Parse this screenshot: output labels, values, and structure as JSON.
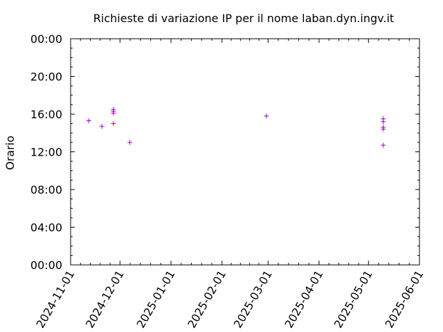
{
  "chart_data": {
    "type": "scatter",
    "title": "Richieste di variazione IP per il nome laban.dyn.ingv.it",
    "xlabel": "",
    "ylabel": "Orario",
    "x_type": "date",
    "xlim": [
      "2024-11-01",
      "2025-06-01"
    ],
    "x_ticks": [
      "2024-11-01",
      "2024-12-01",
      "2025-01-01",
      "2025-02-01",
      "2025-03-01",
      "2025-04-01",
      "2025-05-01",
      "2025-06-01"
    ],
    "y_type": "time_of_day_hours",
    "ylim": [
      0,
      24
    ],
    "y_ticks": [
      0,
      4,
      8,
      12,
      16,
      20,
      24
    ],
    "y_tick_labels": [
      "00:00",
      "04:00",
      "08:00",
      "12:00",
      "16:00",
      "20:00",
      "00:00"
    ],
    "grid": false,
    "marker": "+",
    "color": "#9400d3",
    "points": [
      {
        "x": "2024-11-12",
        "y": 15.3
      },
      {
        "x": "2024-11-20",
        "y": 14.7
      },
      {
        "x": "2024-11-27",
        "y": 16.5
      },
      {
        "x": "2024-11-27",
        "y": 16.3
      },
      {
        "x": "2024-11-27",
        "y": 16.1
      },
      {
        "x": "2024-11-27",
        "y": 15.0
      },
      {
        "x": "2024-12-07",
        "y": 13.0
      },
      {
        "x": "2025-02-28",
        "y": 15.8
      },
      {
        "x": "2025-05-10",
        "y": 15.5
      },
      {
        "x": "2025-05-10",
        "y": 15.2
      },
      {
        "x": "2025-05-10",
        "y": 14.6
      },
      {
        "x": "2025-05-10",
        "y": 14.4
      },
      {
        "x": "2025-05-10",
        "y": 12.7
      }
    ]
  }
}
